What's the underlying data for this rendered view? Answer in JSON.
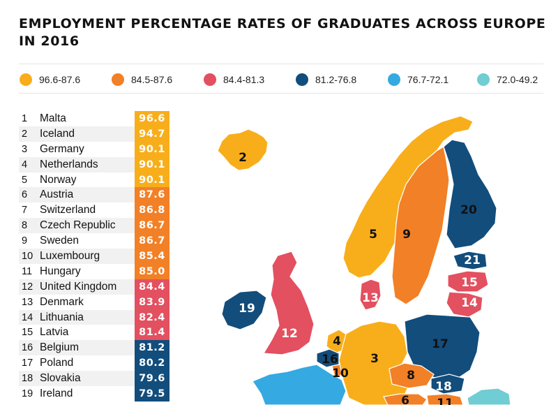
{
  "title": "EMPLOYMENT PERCENTAGE RATES OF GRADUATES ACROSS EUROPE IN 2016",
  "colors": {
    "yellow": "#f8ae1b",
    "orange": "#f28026",
    "red": "#e35060",
    "navy": "#124d7c",
    "blue": "#35a9e1",
    "teal": "#6fcdd3",
    "row_alt": "#f1f1f1",
    "sea": "#ffffff"
  },
  "legend": [
    {
      "label": "96.6-87.6",
      "color": "#f8ae1b"
    },
    {
      "label": "84.5-87.6",
      "color": "#f28026"
    },
    {
      "label": "84.4-81.3",
      "color": "#e35060"
    },
    {
      "label": "81.2-76.8",
      "color": "#124d7c"
    },
    {
      "label": "76.7-72.1",
      "color": "#35a9e1"
    },
    {
      "label": "72.0-49.2",
      "color": "#6fcdd3"
    }
  ],
  "ranking": [
    {
      "rank": "1",
      "country": "Malta",
      "value": "96.6",
      "color": "#f8ae1b"
    },
    {
      "rank": "2",
      "country": "Iceland",
      "value": "94.7",
      "color": "#f8ae1b"
    },
    {
      "rank": "3",
      "country": "Germany",
      "value": "90.1",
      "color": "#f8ae1b"
    },
    {
      "rank": "4",
      "country": "Netherlands",
      "value": "90.1",
      "color": "#f8ae1b"
    },
    {
      "rank": "5",
      "country": "Norway",
      "value": "90.1",
      "color": "#f8ae1b"
    },
    {
      "rank": "6",
      "country": "Austria",
      "value": "87.6",
      "color": "#f28026"
    },
    {
      "rank": "7",
      "country": "Switzerland",
      "value": "86.8",
      "color": "#f28026"
    },
    {
      "rank": "8",
      "country": "Czech Republic",
      "value": "86.7",
      "color": "#f28026"
    },
    {
      "rank": "9",
      "country": "Sweden",
      "value": "86.7",
      "color": "#f28026"
    },
    {
      "rank": "10",
      "country": "Luxembourg",
      "value": "85.4",
      "color": "#f28026"
    },
    {
      "rank": "11",
      "country": "Hungary",
      "value": "85.0",
      "color": "#f28026"
    },
    {
      "rank": "12",
      "country": "United Kingdom",
      "value": "84.4",
      "color": "#e35060"
    },
    {
      "rank": "13",
      "country": "Denmark",
      "value": "83.9",
      "color": "#e35060"
    },
    {
      "rank": "14",
      "country": "Lithuania",
      "value": "82.4",
      "color": "#e35060"
    },
    {
      "rank": "15",
      "country": "Latvia",
      "value": "81.4",
      "color": "#e35060"
    },
    {
      "rank": "16",
      "country": "Belgium",
      "value": "81.2",
      "color": "#124d7c"
    },
    {
      "rank": "17",
      "country": "Poland",
      "value": "80.2",
      "color": "#124d7c"
    },
    {
      "rank": "18",
      "country": "Slovakia",
      "value": "79.6",
      "color": "#124d7c"
    },
    {
      "rank": "19",
      "country": "Ireland",
      "value": "79.5",
      "color": "#124d7c"
    }
  ],
  "map_labels": [
    "2",
    "20",
    "5",
    "9",
    "21",
    "15",
    "14",
    "13",
    "19",
    "12",
    "4",
    "16",
    "10",
    "3",
    "17",
    "8",
    "18",
    "6",
    "11"
  ]
}
